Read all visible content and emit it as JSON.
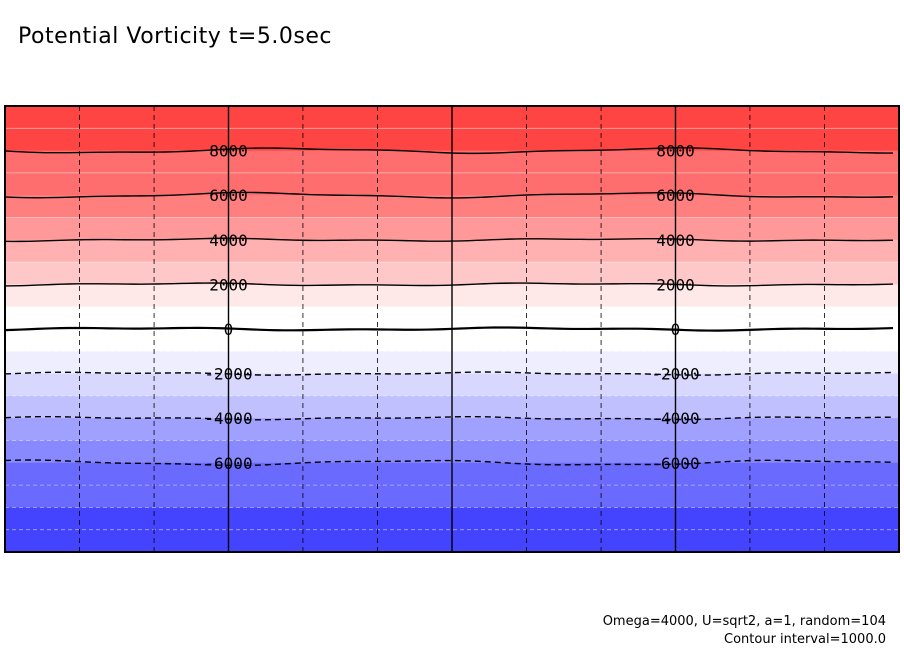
{
  "chart_data": {
    "type": "contour",
    "title": "Potential Vorticity t=5.0sec",
    "contour_interval_text": "Contour interval=1000.0",
    "parameters_text": "Omega=4000, U=sqrt2, a=1, random=104",
    "ylim": [
      -10000,
      10000
    ],
    "xlim": [
      0,
      4
    ],
    "contour_levels": [
      8000,
      6000,
      4000,
      2000,
      0,
      -2000,
      -4000,
      -6000
    ],
    "labeled_levels": [
      "8000",
      "6000",
      "4000",
      "2000",
      "0",
      "-2000",
      "-4000",
      "-6000"
    ],
    "label_columns": [
      1,
      3
    ],
    "vertical_gridlines_solid": [
      1,
      2,
      3
    ],
    "vertical_gridlines_dashed": [
      0.333,
      0.667,
      1.333,
      1.667,
      2.333,
      2.667,
      3.333,
      3.667
    ],
    "fill_bands": [
      {
        "from": 8000,
        "to": 10000,
        "color": "#ff4444"
      },
      {
        "from": 6000,
        "to": 8000,
        "color": "#ff6e6e"
      },
      {
        "from": 5000,
        "to": 6000,
        "color": "#ff7f7f"
      },
      {
        "from": 4000,
        "to": 5000,
        "color": "#ff9999"
      },
      {
        "from": 3000,
        "to": 4000,
        "color": "#ffb0b0"
      },
      {
        "from": 2000,
        "to": 3000,
        "color": "#ffc8c8"
      },
      {
        "from": 1000,
        "to": 2000,
        "color": "#ffe8e8"
      },
      {
        "from": 0,
        "to": 1000,
        "color": "#ffffff"
      },
      {
        "from": -1000,
        "to": 0,
        "color": "#ffffff"
      },
      {
        "from": -2000,
        "to": -1000,
        "color": "#eeeeff"
      },
      {
        "from": -3000,
        "to": -2000,
        "color": "#d8d8ff"
      },
      {
        "from": -4000,
        "to": -3000,
        "color": "#c0c0ff"
      },
      {
        "from": -5000,
        "to": -4000,
        "color": "#a0a0ff"
      },
      {
        "from": -6000,
        "to": -5000,
        "color": "#8888ff"
      },
      {
        "from": -8000,
        "to": -6000,
        "color": "#6a6aff"
      },
      {
        "from": -10000,
        "to": -8000,
        "color": "#4444ff"
      }
    ]
  }
}
